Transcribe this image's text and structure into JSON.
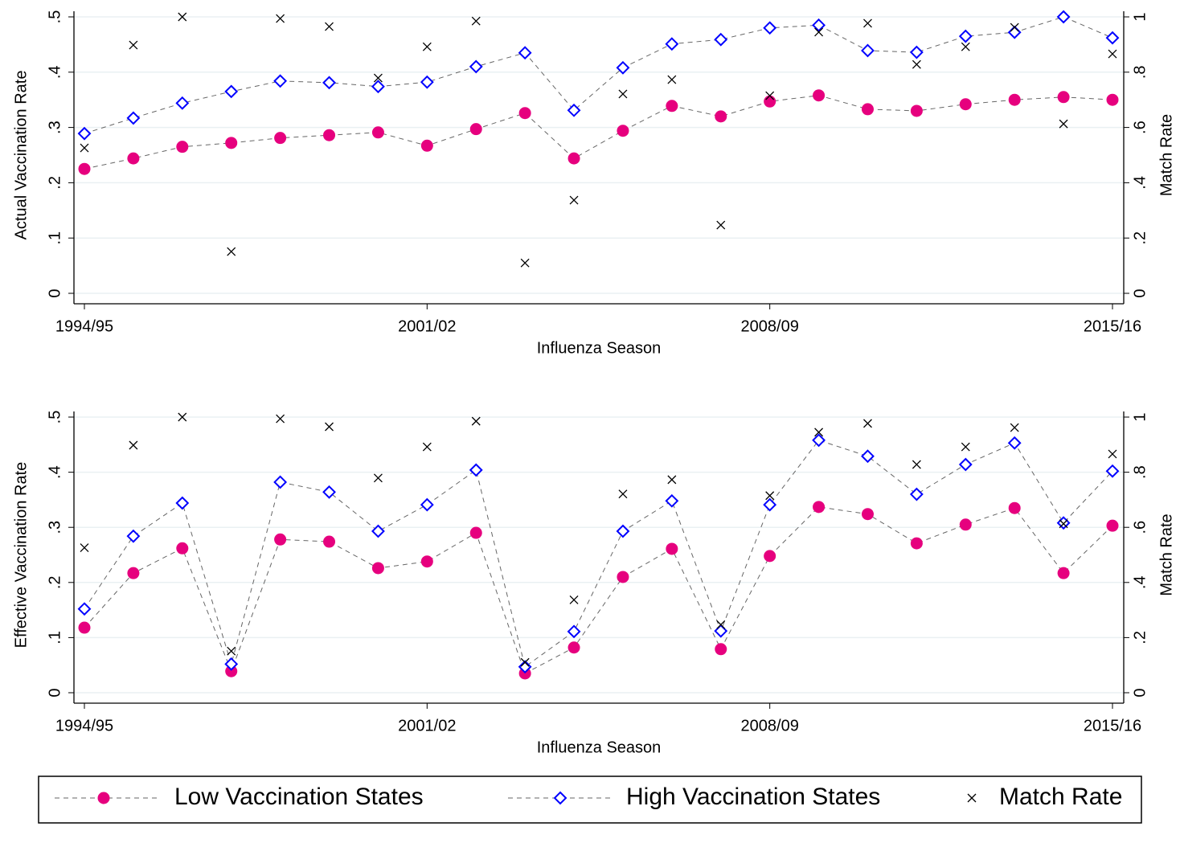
{
  "chart_data": [
    {
      "type": "line",
      "xlabel": "Influenza Season",
      "ylabel": "Actual Vaccination Rate",
      "y2label": "Match Rate",
      "categories": [
        "1994/95",
        null,
        null,
        null,
        null,
        null,
        null,
        "2001/02",
        null,
        null,
        null,
        null,
        null,
        null,
        "2008/09",
        null,
        null,
        null,
        null,
        null,
        null,
        "2015/16"
      ],
      "ylim": [
        0,
        0.5
      ],
      "yticks": [
        0,
        {
          "value": 0.1,
          "label": ".1"
        },
        {
          "value": 0.2,
          "label": ".2"
        },
        {
          "value": 0.3,
          "label": ".3"
        },
        {
          "value": 0.4,
          "label": ".4"
        },
        {
          "value": 0.5,
          "label": ".5"
        }
      ],
      "y2lim": [
        0,
        1
      ],
      "y2ticks": [
        0,
        {
          "value": 0.2,
          "label": ".2"
        },
        {
          "value": 0.4,
          "label": ".4"
        },
        {
          "value": 0.6,
          "label": ".6"
        },
        {
          "value": 0.8,
          "label": ".8"
        },
        1
      ],
      "grid": true,
      "series": [
        {
          "name": "Low Vaccination States",
          "color": "#e6007e",
          "marker": "circle",
          "line": "dashed",
          "values": [
            0.225,
            0.244,
            0.265,
            0.272,
            0.281,
            0.286,
            0.291,
            0.267,
            0.297,
            0.326,
            0.244,
            0.294,
            0.339,
            0.32,
            0.347,
            0.358,
            0.333,
            0.33,
            0.342,
            0.35,
            0.355,
            0.35
          ]
        },
        {
          "name": "High Vaccination States",
          "color": "#0000ff",
          "marker": "diamond",
          "line": "dashed",
          "values": [
            0.289,
            0.317,
            0.344,
            0.365,
            0.384,
            0.381,
            0.374,
            0.382,
            0.41,
            0.435,
            0.331,
            0.408,
            0.451,
            0.459,
            0.48,
            0.485,
            0.439,
            0.436,
            0.465,
            0.472,
            0.5,
            0.462
          ]
        },
        {
          "name": "Match Rate",
          "color": "#000000",
          "marker": "x",
          "axis": "y2",
          "values": [
            0.526,
            0.898,
            1.0,
            0.151,
            0.994,
            0.965,
            0.779,
            0.892,
            0.985,
            0.11,
            0.337,
            0.721,
            0.773,
            0.247,
            0.715,
            0.945,
            0.977,
            0.828,
            0.892,
            0.962,
            0.613,
            0.866
          ]
        }
      ]
    },
    {
      "type": "line",
      "xlabel": "Influenza Season",
      "ylabel": "Effective Vaccination Rate",
      "y2label": "Match Rate",
      "categories": [
        "1994/95",
        null,
        null,
        null,
        null,
        null,
        null,
        "2001/02",
        null,
        null,
        null,
        null,
        null,
        null,
        "2008/09",
        null,
        null,
        null,
        null,
        null,
        null,
        "2015/16"
      ],
      "ylim": [
        0,
        0.5
      ],
      "yticks": [
        0,
        {
          "value": 0.1,
          "label": ".1"
        },
        {
          "value": 0.2,
          "label": ".2"
        },
        {
          "value": 0.3,
          "label": ".3"
        },
        {
          "value": 0.4,
          "label": ".4"
        },
        {
          "value": 0.5,
          "label": ".5"
        }
      ],
      "y2lim": [
        0,
        1
      ],
      "y2ticks": [
        0,
        {
          "value": 0.2,
          "label": ".2"
        },
        {
          "value": 0.4,
          "label": ".4"
        },
        {
          "value": 0.6,
          "label": ".6"
        },
        {
          "value": 0.8,
          "label": ".8"
        },
        1
      ],
      "grid": true,
      "series": [
        {
          "color": "#e6007e",
          "marker": "circle",
          "line": "dashed",
          "values": [
            0.118,
            0.217,
            0.262,
            0.039,
            0.278,
            0.274,
            0.226,
            0.238,
            0.29,
            0.035,
            0.082,
            0.21,
            0.261,
            0.079,
            0.248,
            0.337,
            0.324,
            0.271,
            0.305,
            0.335,
            0.217,
            0.303
          ]
        },
        {
          "color": "#0000ff",
          "marker": "diamond",
          "line": "dashed",
          "values": [
            0.152,
            0.284,
            0.344,
            0.052,
            0.382,
            0.364,
            0.293,
            0.341,
            0.404,
            0.047,
            0.111,
            0.293,
            0.348,
            0.112,
            0.341,
            0.458,
            0.429,
            0.36,
            0.414,
            0.453,
            0.308,
            0.402
          ]
        },
        {
          "color": "#000000",
          "marker": "x",
          "axis": "y2",
          "values": [
            0.526,
            0.898,
            1.0,
            0.151,
            0.994,
            0.965,
            0.779,
            0.892,
            0.985,
            0.11,
            0.337,
            0.721,
            0.773,
            0.247,
            0.715,
            0.945,
            0.977,
            0.828,
            0.892,
            0.962,
            0.613,
            0.866
          ]
        }
      ]
    }
  ]
}
